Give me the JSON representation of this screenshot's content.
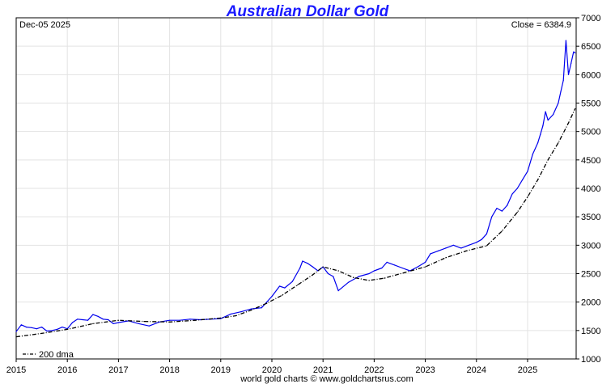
{
  "chart_data": {
    "type": "line",
    "title": "Australian Dollar Gold",
    "date_label": "Dec-05  2025",
    "close_label": "Close = 6384.9",
    "footer": "world gold charts © www.goldchartsrus.com",
    "legend": {
      "dma_label": "200 dma",
      "placement": "bottom-left"
    },
    "grid": true,
    "xlim": [
      2015.0,
      2025.95
    ],
    "ylim": [
      1000,
      7000
    ],
    "x_ticks": [
      "2015",
      "2016",
      "2017",
      "2018",
      "2019",
      "2020",
      "2021",
      "2022",
      "2023",
      "2024",
      "2025"
    ],
    "y_ticks": [
      1000,
      1500,
      2000,
      2500,
      3000,
      3500,
      4000,
      4500,
      5000,
      5500,
      6000,
      6500,
      7000
    ],
    "series": [
      {
        "key": "price",
        "color": "#0000ee",
        "x": [
          2015.0,
          2015.1,
          2015.2,
          2015.3,
          2015.4,
          2015.5,
          2015.6,
          2015.7,
          2015.8,
          2015.9,
          2016.0,
          2016.1,
          2016.2,
          2016.3,
          2016.4,
          2016.5,
          2016.6,
          2016.7,
          2016.8,
          2016.9,
          2017.0,
          2017.2,
          2017.4,
          2017.6,
          2017.8,
          2018.0,
          2018.2,
          2018.4,
          2018.6,
          2018.8,
          2019.0,
          2019.2,
          2019.4,
          2019.6,
          2019.8,
          2020.0,
          2020.15,
          2020.25,
          2020.4,
          2020.55,
          2020.6,
          2020.7,
          2020.8,
          2020.9,
          2021.0,
          2021.1,
          2021.2,
          2021.3,
          2021.5,
          2021.7,
          2021.9,
          2022.0,
          2022.15,
          2022.25,
          2022.4,
          2022.55,
          2022.7,
          2022.85,
          2023.0,
          2023.1,
          2023.25,
          2023.4,
          2023.55,
          2023.7,
          2023.85,
          2024.0,
          2024.1,
          2024.2,
          2024.3,
          2024.4,
          2024.5,
          2024.6,
          2024.7,
          2024.8,
          2024.9,
          2025.0,
          2025.1,
          2025.2,
          2025.25,
          2025.3,
          2025.35,
          2025.4,
          2025.5,
          2025.6,
          2025.65,
          2025.7,
          2025.75,
          2025.8,
          2025.85,
          2025.9,
          2025.93
        ],
        "values": [
          1480,
          1600,
          1560,
          1550,
          1530,
          1560,
          1490,
          1500,
          1520,
          1560,
          1530,
          1640,
          1700,
          1690,
          1680,
          1780,
          1750,
          1700,
          1690,
          1620,
          1640,
          1670,
          1620,
          1580,
          1650,
          1680,
          1680,
          1700,
          1690,
          1700,
          1710,
          1790,
          1830,
          1880,
          1900,
          2100,
          2280,
          2250,
          2360,
          2600,
          2720,
          2680,
          2620,
          2550,
          2620,
          2500,
          2450,
          2200,
          2350,
          2450,
          2500,
          2550,
          2600,
          2700,
          2650,
          2600,
          2550,
          2620,
          2700,
          2850,
          2900,
          2950,
          3000,
          2950,
          3000,
          3050,
          3100,
          3200,
          3500,
          3650,
          3600,
          3700,
          3900,
          4000,
          4150,
          4300,
          4600,
          4800,
          4950,
          5100,
          5350,
          5200,
          5300,
          5500,
          5700,
          5900,
          6600,
          6000,
          6200,
          6400,
          6385
        ]
      },
      {
        "key": "dma",
        "color": "#000000",
        "x": [
          2015.0,
          2015.5,
          2016.0,
          2016.5,
          2017.0,
          2017.5,
          2018.0,
          2018.5,
          2019.0,
          2019.3,
          2019.6,
          2019.9,
          2020.2,
          2020.5,
          2020.8,
          2021.0,
          2021.3,
          2021.6,
          2021.9,
          2022.2,
          2022.6,
          2023.0,
          2023.4,
          2023.8,
          2024.2,
          2024.5,
          2024.8,
          2025.0,
          2025.2,
          2025.4,
          2025.6,
          2025.8,
          2025.93
        ],
        "values": [
          1390,
          1450,
          1520,
          1620,
          1680,
          1660,
          1650,
          1680,
          1720,
          1760,
          1860,
          1980,
          2120,
          2300,
          2480,
          2620,
          2550,
          2430,
          2380,
          2420,
          2520,
          2620,
          2780,
          2900,
          2990,
          3250,
          3580,
          3850,
          4150,
          4500,
          4800,
          5150,
          5400
        ]
      }
    ]
  }
}
